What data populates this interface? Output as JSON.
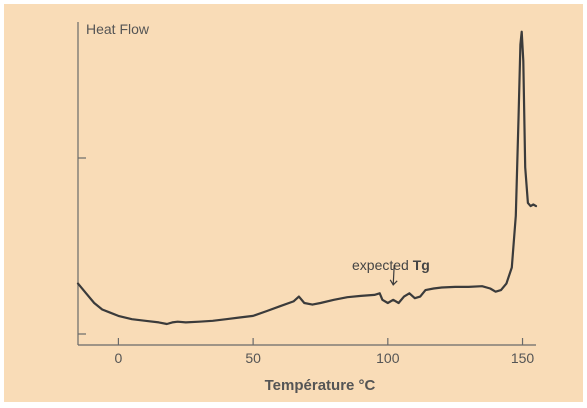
{
  "chart_data": {
    "type": "line",
    "title": "",
    "ylabel": "Heat Flow",
    "xlabel": "Température °C",
    "xlim": [
      -15,
      155
    ],
    "ylim": [
      0,
      100
    ],
    "xticks": [
      0,
      50,
      100,
      150
    ],
    "grid": false,
    "legend": "none",
    "annotations": [
      {
        "text_regular": "expected ",
        "text_bold": "Tg",
        "x": 102,
        "y": 18
      }
    ],
    "series": [
      {
        "values": [
          [
            -15,
            19
          ],
          [
            -12,
            16
          ],
          [
            -9,
            13
          ],
          [
            -6,
            11
          ],
          [
            -3,
            10
          ],
          [
            0,
            9
          ],
          [
            5,
            8
          ],
          [
            10,
            7.5
          ],
          [
            15,
            7
          ],
          [
            18,
            6.5
          ],
          [
            20,
            7
          ],
          [
            22,
            7.2
          ],
          [
            25,
            7
          ],
          [
            30,
            7.2
          ],
          [
            35,
            7.5
          ],
          [
            40,
            8
          ],
          [
            45,
            8.5
          ],
          [
            50,
            9
          ],
          [
            55,
            10.5
          ],
          [
            60,
            12
          ],
          [
            65,
            13.5
          ],
          [
            67,
            15
          ],
          [
            69,
            13
          ],
          [
            72,
            12.5
          ],
          [
            75,
            13
          ],
          [
            80,
            14
          ],
          [
            85,
            14.8
          ],
          [
            90,
            15.2
          ],
          [
            95,
            15.5
          ],
          [
            97,
            16
          ],
          [
            98,
            14
          ],
          [
            100,
            13
          ],
          [
            102,
            14
          ],
          [
            104,
            13
          ],
          [
            106,
            15
          ],
          [
            108,
            16
          ],
          [
            110,
            14.5
          ],
          [
            112,
            15
          ],
          [
            114,
            17
          ],
          [
            117,
            17.5
          ],
          [
            120,
            17.8
          ],
          [
            125,
            18
          ],
          [
            130,
            18
          ],
          [
            135,
            18.2
          ],
          [
            138,
            17.5
          ],
          [
            140,
            16.5
          ],
          [
            142,
            17
          ],
          [
            144,
            19
          ],
          [
            146,
            24
          ],
          [
            147.5,
            40
          ],
          [
            148.5,
            70
          ],
          [
            149.2,
            93
          ],
          [
            149.7,
            97
          ],
          [
            150.3,
            88
          ],
          [
            151,
            55
          ],
          [
            152,
            44
          ],
          [
            153,
            43
          ],
          [
            154,
            43.5
          ],
          [
            155,
            43
          ]
        ]
      }
    ]
  }
}
